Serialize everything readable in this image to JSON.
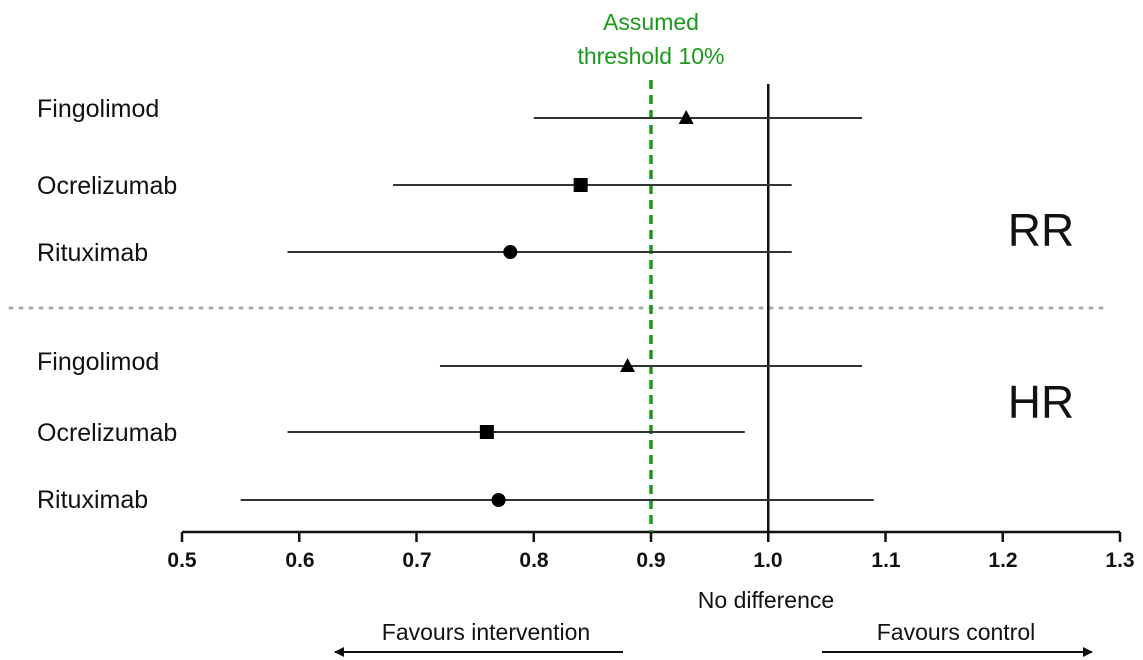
{
  "chart_data": {
    "type": "forest",
    "xlim": [
      0.5,
      1.3
    ],
    "x_ticks": [
      "0.5",
      "0.6",
      "0.7",
      "0.8",
      "0.9",
      "1.0",
      "1.1",
      "1.2",
      "1.3"
    ],
    "reference_line": {
      "value": 1.0,
      "label": "No difference"
    },
    "threshold_line": {
      "value": 0.9,
      "label_line1": "Assumed",
      "label_line2": "threshold 10%",
      "color": "#1a9a1a"
    },
    "favours": {
      "left": "Favours intervention",
      "right": "Favours control"
    },
    "groups": [
      {
        "label": "RR",
        "rows": [
          {
            "name": "Fingolimod",
            "estimate": 0.93,
            "lower": 0.8,
            "upper": 1.08,
            "marker": "triangle"
          },
          {
            "name": "Ocrelizumab",
            "estimate": 0.84,
            "lower": 0.68,
            "upper": 1.02,
            "marker": "square"
          },
          {
            "name": "Rituximab",
            "estimate": 0.78,
            "lower": 0.59,
            "upper": 1.02,
            "marker": "circle"
          }
        ]
      },
      {
        "label": "HR",
        "rows": [
          {
            "name": "Fingolimod",
            "estimate": 0.88,
            "lower": 0.72,
            "upper": 1.08,
            "marker": "triangle"
          },
          {
            "name": "Ocrelizumab",
            "estimate": 0.76,
            "lower": 0.59,
            "upper": 0.98,
            "marker": "square"
          },
          {
            "name": "Rituximab",
            "estimate": 0.77,
            "lower": 0.55,
            "upper": 1.09,
            "marker": "circle"
          }
        ]
      }
    ],
    "colors": {
      "line": "#111111",
      "ci": "#333333",
      "separator": "#aaaaaa",
      "threshold": "#1a9a1a"
    }
  }
}
